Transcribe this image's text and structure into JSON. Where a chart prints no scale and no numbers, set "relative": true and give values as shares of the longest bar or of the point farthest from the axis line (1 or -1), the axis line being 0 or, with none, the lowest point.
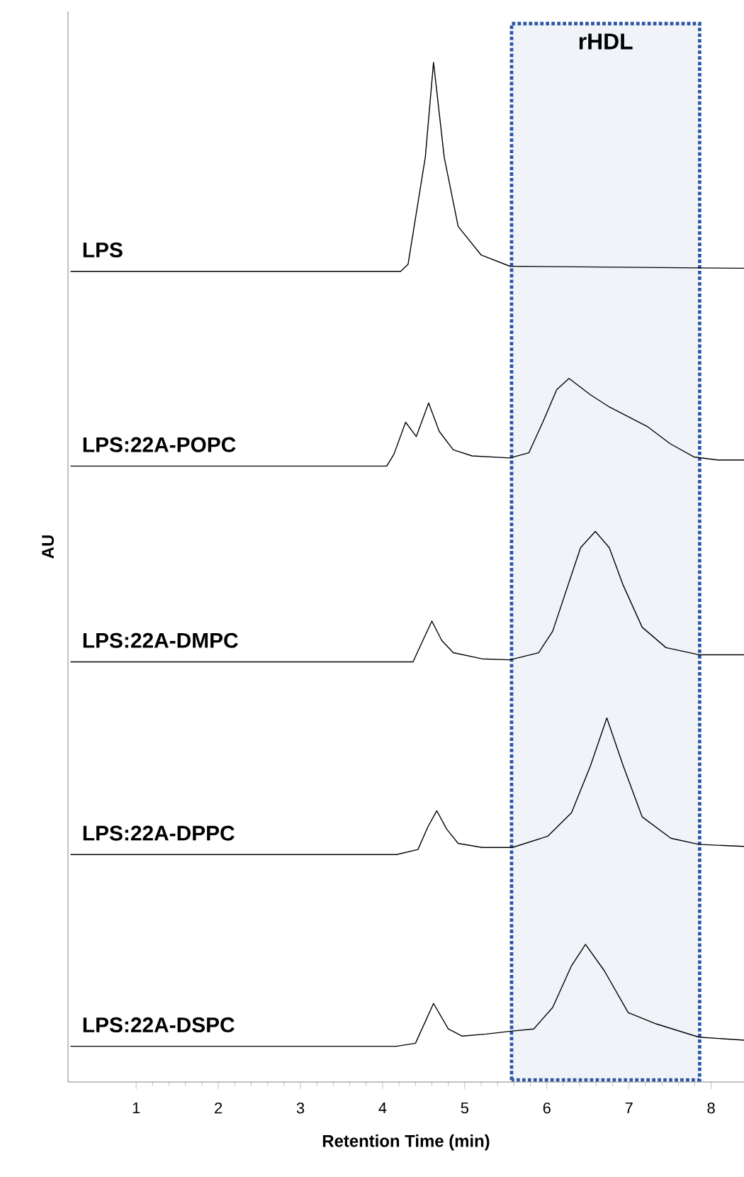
{
  "chart_data": {
    "type": "line",
    "relative": true,
    "xlabel": "Retention Time (min)",
    "ylabel": "AU",
    "xlim": [
      0.17,
      8.4
    ],
    "xticks": [
      1,
      2,
      3,
      4,
      5,
      6,
      7,
      8
    ],
    "bands": [
      {
        "axis": "x",
        "from": 5.57,
        "to": 7.86,
        "label": "rHDL",
        "color": "#2e56a0"
      }
    ],
    "series": [
      {
        "name": "LPS",
        "color": "#000000",
        "x": [
          0.2,
          4.22,
          4.31,
          4.52,
          4.62,
          4.75,
          4.92,
          5.2,
          5.55,
          8.4
        ],
        "values": [
          0.795,
          0.795,
          0.802,
          0.907,
          1.0,
          0.907,
          0.839,
          0.811,
          0.8,
          0.798
        ]
      },
      {
        "name": "LPS:22A-POPC",
        "color": "#000000",
        "x": [
          0.2,
          4.05,
          4.14,
          4.28,
          4.41,
          4.56,
          4.69,
          4.86,
          5.09,
          5.55,
          5.78,
          5.95,
          6.12,
          6.27,
          6.53,
          6.76,
          7.22,
          7.5,
          7.79,
          8.08,
          8.4
        ],
        "values": [
          0.604,
          0.604,
          0.616,
          0.647,
          0.633,
          0.666,
          0.638,
          0.62,
          0.614,
          0.612,
          0.617,
          0.647,
          0.679,
          0.69,
          0.674,
          0.662,
          0.643,
          0.626,
          0.613,
          0.61,
          0.61
        ]
      },
      {
        "name": "LPS:22A-DMPC",
        "color": "#000000",
        "x": [
          0.2,
          4.37,
          4.49,
          4.6,
          4.72,
          4.86,
          5.21,
          5.55,
          5.9,
          6.07,
          6.24,
          6.41,
          6.59,
          6.76,
          6.93,
          7.16,
          7.45,
          7.85,
          8.4
        ],
        "values": [
          0.412,
          0.412,
          0.433,
          0.452,
          0.433,
          0.421,
          0.415,
          0.414,
          0.421,
          0.442,
          0.483,
          0.524,
          0.54,
          0.524,
          0.487,
          0.446,
          0.426,
          0.419,
          0.419
        ]
      },
      {
        "name": "LPS:22A-DPPC",
        "color": "#000000",
        "x": [
          0.2,
          4.17,
          4.43,
          4.55,
          4.66,
          4.78,
          4.92,
          5.21,
          5.58,
          6.01,
          6.3,
          6.53,
          6.73,
          6.93,
          7.16,
          7.51,
          7.85,
          8.4
        ],
        "values": [
          0.223,
          0.223,
          0.228,
          0.25,
          0.266,
          0.248,
          0.234,
          0.23,
          0.23,
          0.241,
          0.264,
          0.31,
          0.357,
          0.31,
          0.26,
          0.239,
          0.233,
          0.231
        ]
      },
      {
        "name": "LPS:22A-DSPC",
        "color": "#000000",
        "x": [
          0.2,
          4.17,
          4.4,
          4.62,
          4.8,
          4.97,
          5.26,
          5.58,
          5.84,
          6.07,
          6.3,
          6.47,
          6.7,
          6.99,
          7.33,
          7.85,
          8.4
        ],
        "values": [
          0.035,
          0.035,
          0.038,
          0.077,
          0.052,
          0.045,
          0.047,
          0.05,
          0.052,
          0.073,
          0.114,
          0.135,
          0.109,
          0.068,
          0.057,
          0.044,
          0.041
        ]
      }
    ]
  }
}
